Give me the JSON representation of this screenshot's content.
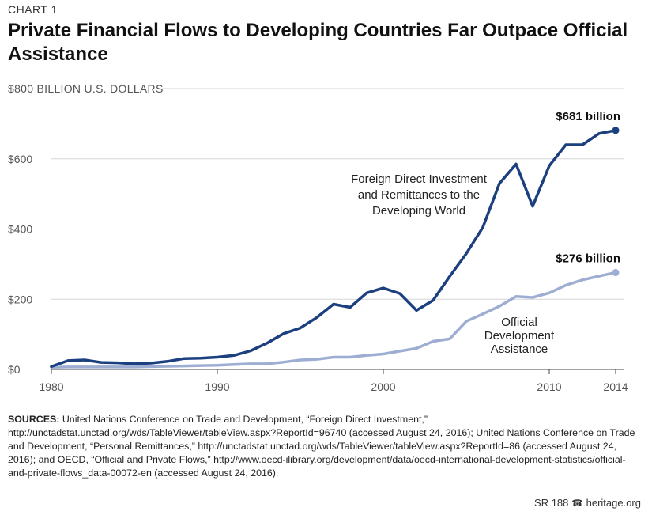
{
  "chart_label": "CHART 1",
  "title": "Private Financial Flows to Developing Countries Far Outpace Official Assistance",
  "unit_label": "$800 BILLION U.S. DOLLARS",
  "sources": {
    "prefix": "SOURCES:",
    "text": "United Nations Conference on Trade and Development, “Foreign Direct Investment,” http://unctadstat.unctad.org/wds/TableViewer/tableView.aspx?ReportId=96740 (accessed August 24, 2016); United Nations Conference on Trade and Development, “Personal Remittances,” http://unctadstat.unctad.org/wds/TableViewer/tableView.aspx?ReportId=86 (accessed August 24, 2016); and OECD, “Official and Private Flows,” http://www.oecd-ilibrary.org/development/data/oecd-international-development-statistics/official-and-private-flows_data-00072-en (accessed August 24, 2016)."
  },
  "footer": {
    "report": "SR 188",
    "bell": "☎",
    "site": "heritage.org"
  },
  "chart_data": {
    "type": "line",
    "title": "Private Financial Flows to Developing Countries Far Outpace Official Assistance",
    "xlabel": "",
    "ylabel": "BILLION U.S. DOLLARS",
    "xlim": [
      1980,
      2014
    ],
    "ylim": [
      0,
      800
    ],
    "x_ticks": [
      "1980",
      "1990",
      "2000",
      "2010",
      "2014"
    ],
    "y_ticks": [
      "$0",
      "$200",
      "$400",
      "$600"
    ],
    "grid": true,
    "x": [
      1980,
      1981,
      1982,
      1983,
      1984,
      1985,
      1986,
      1987,
      1988,
      1989,
      1990,
      1991,
      1992,
      1993,
      1994,
      1995,
      1996,
      1997,
      1998,
      1999,
      2000,
      2001,
      2002,
      2003,
      2004,
      2005,
      2006,
      2007,
      2008,
      2009,
      2010,
      2011,
      2012,
      2013,
      2014
    ],
    "series": [
      {
        "name": "Foreign Direct Investment and Remittances to the Developing World",
        "name_lines": [
          "Foreign Direct Investment",
          "and Remittances to the",
          "Developing World"
        ],
        "color": "#1b3f7f",
        "values": [
          8,
          25,
          27,
          20,
          19,
          16,
          18,
          23,
          31,
          32,
          35,
          40,
          53,
          75,
          102,
          118,
          148,
          186,
          177,
          218,
          232,
          216,
          168,
          197,
          265,
          330,
          405,
          530,
          585,
          465,
          580,
          640,
          640,
          672,
          681
        ],
        "end_label": "$681 billion"
      },
      {
        "name": "Official Development Assistance",
        "name_lines": [
          "Official",
          "Development",
          "Assistance"
        ],
        "color": "#9eaed2",
        "values": [
          6,
          7,
          7,
          7,
          7,
          7,
          8,
          9,
          10,
          11,
          12,
          14,
          16,
          16,
          21,
          27,
          29,
          35,
          35,
          40,
          44,
          52,
          60,
          80,
          87,
          137,
          158,
          180,
          208,
          205,
          218,
          240,
          255,
          266,
          276
        ],
        "end_label": "$276 billion"
      }
    ]
  }
}
